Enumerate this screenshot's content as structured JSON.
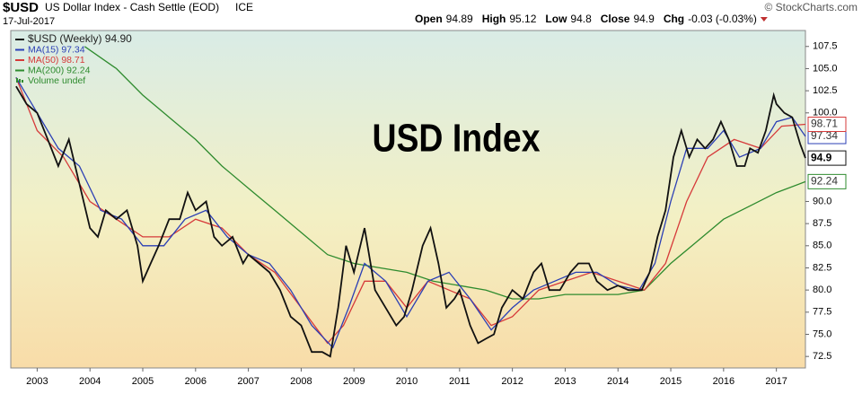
{
  "chart_data": {
    "type": "line",
    "symbol": "$USD",
    "title": "US Dollar Index - Cash Settle (EOD)",
    "exchange": "ICE",
    "date": "17-Jul-2017",
    "quote": [
      {
        "label": "Open",
        "value": 94.89
      },
      {
        "label": "High",
        "value": 95.12
      },
      {
        "label": "Low",
        "value": 94.8
      },
      {
        "label": "Close",
        "value": 94.9
      },
      {
        "label": "Chg",
        "value": "-0.03 (-0.03%)"
      }
    ],
    "source": "© StockCharts.com",
    "annotation": "USD Index",
    "legend_extra": "Volume undef",
    "series": [
      {
        "name": "$USD (Weekly) 94.90",
        "color": "#111111",
        "x": [
          2002.6,
          2002.8,
          2003.0,
          2003.2,
          2003.4,
          2003.6,
          2003.8,
          2004.0,
          2004.15,
          2004.3,
          2004.5,
          2004.7,
          2004.9,
          2005.0,
          2005.15,
          2005.3,
          2005.5,
          2005.7,
          2005.85,
          2006.0,
          2006.2,
          2006.35,
          2006.5,
          2006.7,
          2006.9,
          2007.0,
          2007.2,
          2007.4,
          2007.6,
          2007.8,
          2008.0,
          2008.2,
          2008.4,
          2008.55,
          2008.7,
          2008.85,
          2009.0,
          2009.2,
          2009.4,
          2009.6,
          2009.8,
          2009.95,
          2010.1,
          2010.3,
          2010.45,
          2010.6,
          2010.75,
          2010.9,
          2011.0,
          2011.2,
          2011.35,
          2011.5,
          2011.65,
          2011.8,
          2012.0,
          2012.2,
          2012.4,
          2012.55,
          2012.7,
          2012.9,
          2013.1,
          2013.25,
          2013.45,
          2013.6,
          2013.8,
          2014.0,
          2014.2,
          2014.45,
          2014.6,
          2014.75,
          2014.9,
          2015.05,
          2015.2,
          2015.35,
          2015.5,
          2015.65,
          2015.8,
          2015.95,
          2016.1,
          2016.25,
          2016.4,
          2016.5,
          2016.65,
          2016.8,
          2016.95,
          2017.0,
          2017.15,
          2017.3,
          2017.45,
          2017.55
        ],
        "values": [
          103,
          101,
          100,
          97,
          94,
          97,
          92,
          87,
          86,
          89,
          88,
          89,
          85,
          81,
          83,
          85,
          88,
          88,
          91,
          89,
          90,
          86,
          85,
          86,
          83,
          84,
          83,
          82,
          80,
          77,
          76,
          73,
          73,
          72.5,
          78,
          85,
          82,
          87,
          80,
          78,
          76,
          77,
          80,
          85,
          87,
          83,
          78,
          79,
          80,
          76,
          74,
          74.5,
          75,
          78,
          80,
          79,
          82,
          83,
          80,
          80,
          82,
          83,
          83,
          81,
          80,
          80.5,
          80,
          80,
          82,
          86,
          89,
          95,
          98,
          95,
          97,
          96,
          97,
          99,
          97,
          94,
          94,
          96,
          95.5,
          98,
          102,
          101,
          100,
          99.5,
          96.5,
          94.9
        ]
      },
      {
        "name": "MA(15) 97.34",
        "color": "#2b3fb5",
        "x": [
          2002.6,
          2003.0,
          2003.4,
          2003.8,
          2004.2,
          2004.6,
          2005.0,
          2005.4,
          2005.8,
          2006.2,
          2006.6,
          2007.0,
          2007.4,
          2007.8,
          2008.2,
          2008.6,
          2008.9,
          2009.2,
          2009.6,
          2010.0,
          2010.4,
          2010.8,
          2011.2,
          2011.6,
          2012.0,
          2012.4,
          2012.8,
          2013.2,
          2013.6,
          2014.0,
          2014.4,
          2014.7,
          2015.0,
          2015.3,
          2015.7,
          2016.0,
          2016.3,
          2016.7,
          2017.0,
          2017.3,
          2017.55
        ],
        "values": [
          104,
          100,
          96,
          94,
          89,
          88,
          85,
          85,
          88,
          89,
          86,
          84,
          83,
          80,
          76,
          73.5,
          78,
          83,
          81,
          77,
          81,
          82,
          79,
          75.5,
          78,
          80,
          81,
          82,
          82,
          80.5,
          80,
          83,
          90,
          96,
          96,
          98,
          95,
          96,
          99,
          99.5,
          97.34
        ]
      },
      {
        "name": "MA(50) 98.71",
        "color": "#d63a3a",
        "x": [
          2002.6,
          2003.0,
          2003.5,
          2004.0,
          2004.5,
          2005.0,
          2005.5,
          2006.0,
          2006.5,
          2007.0,
          2007.5,
          2008.0,
          2008.5,
          2008.8,
          2009.2,
          2009.6,
          2010.0,
          2010.4,
          2010.8,
          2011.2,
          2011.6,
          2012.0,
          2012.5,
          2013.0,
          2013.5,
          2014.0,
          2014.5,
          2014.9,
          2015.3,
          2015.7,
          2016.2,
          2016.7,
          2017.1,
          2017.55
        ],
        "values": [
          104,
          98,
          95,
          90,
          88,
          86,
          86,
          88,
          87,
          84,
          82,
          78,
          74,
          76,
          81,
          81,
          78,
          81,
          80,
          79,
          76,
          77,
          80,
          81,
          82,
          81,
          80,
          83,
          90,
          95,
          97,
          96,
          98.5,
          98.71
        ]
      },
      {
        "name": "MA(200) 92.24",
        "color": "#2e8b2e",
        "x": [
          2003.9,
          2004.5,
          2005.0,
          2005.5,
          2006.0,
          2006.5,
          2007.0,
          2007.5,
          2008.0,
          2008.5,
          2009.0,
          2009.5,
          2010.0,
          2010.5,
          2011.0,
          2011.5,
          2012.0,
          2012.5,
          2013.0,
          2013.5,
          2014.0,
          2014.5,
          2015.0,
          2015.5,
          2016.0,
          2016.5,
          2017.0,
          2017.55
        ],
        "values": [
          107.5,
          105,
          102,
          99.5,
          97,
          94,
          91.5,
          89,
          86.5,
          84,
          83,
          82.5,
          82,
          81,
          80.5,
          80,
          79,
          79,
          79.5,
          79.5,
          79.5,
          80,
          83,
          85.5,
          88,
          89.5,
          91,
          92.24
        ]
      }
    ],
    "xlim": [
      2002.5,
      2017.55
    ],
    "xticks": [
      2003,
      2004,
      2005,
      2006,
      2007,
      2008,
      2009,
      2010,
      2011,
      2012,
      2013,
      2014,
      2015,
      2016,
      2017
    ],
    "ylim": [
      71.2,
      109.3
    ],
    "yticks": [
      107.5,
      {
        "value": 105,
        "label": "105.0"
      },
      102.5,
      {
        "value": 100,
        "label": "100.0"
      },
      {
        "value": 90,
        "label": "90.0"
      },
      87.5,
      {
        "value": 85,
        "label": "85.0"
      },
      82.5,
      {
        "value": 80,
        "label": "80.0"
      },
      77.5,
      {
        "value": 75,
        "label": "75.0"
      },
      72.5
    ]
  }
}
